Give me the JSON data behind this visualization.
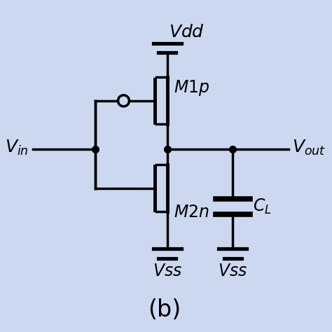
{
  "bg_color": "#ccd8f0",
  "line_color": "black",
  "title": "(b)",
  "title_fontsize": 24,
  "label_fontsize": 17,
  "lw": 2.5
}
